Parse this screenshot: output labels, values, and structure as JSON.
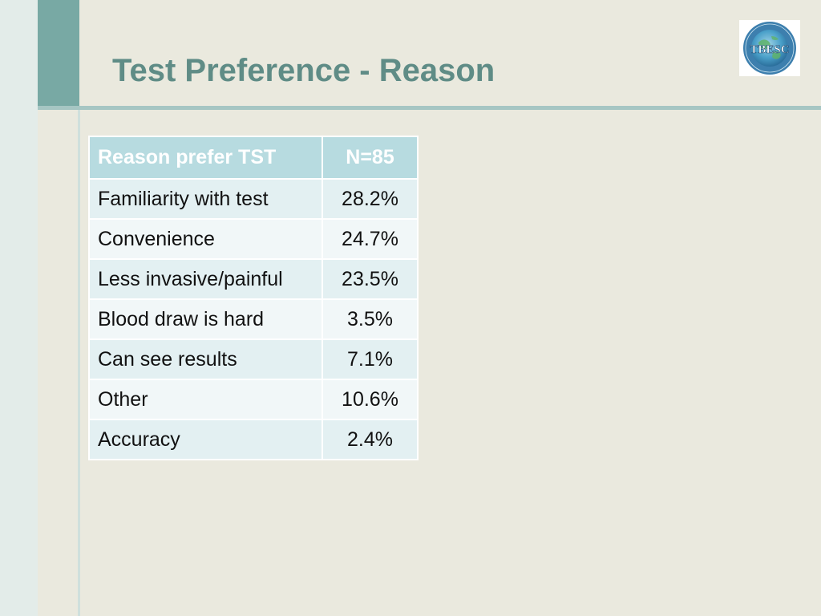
{
  "slide": {
    "title": "Test Preference - Reason"
  },
  "logo": {
    "text": "TBESC",
    "ring_text": "TUBERCULOSIS EPIDEMIOLOGIC STUDIES CONSORTIUM",
    "accent_color": "#3d8fc4"
  },
  "table": {
    "headers": [
      "Reason prefer TST",
      "N=85"
    ],
    "rows": [
      {
        "reason": "Familiarity with test",
        "value": "28.2%"
      },
      {
        "reason": "Convenience",
        "value": "24.7%"
      },
      {
        "reason": "Less invasive/painful",
        "value": "23.5%"
      },
      {
        "reason": "Blood draw is hard",
        "value": "3.5%"
      },
      {
        "reason": "Can see results",
        "value": "7.1%"
      },
      {
        "reason": "Other",
        "value": "10.6%"
      },
      {
        "reason": "Accuracy",
        "value": "2.4%"
      }
    ]
  },
  "colors": {
    "title": "#5f8c86",
    "header_fill": "#b7dbe0",
    "row_odd": "#e3f0f2",
    "row_even": "#f1f7f8",
    "background": "#eae9de"
  }
}
